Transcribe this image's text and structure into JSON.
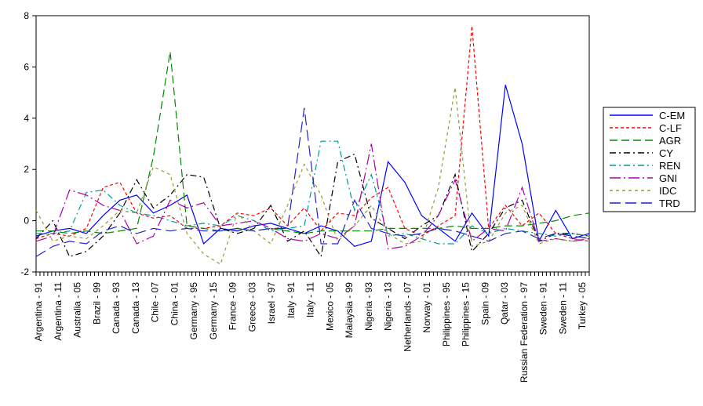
{
  "chart_data": {
    "type": "line",
    "title": "",
    "xlabel": "",
    "ylabel": "",
    "ylim": [
      -2,
      8
    ],
    "y_ticks": [
      -2,
      0,
      2,
      4,
      6,
      8
    ],
    "grid": false,
    "legend_position": "right",
    "x_tick_labels": [
      "Argentina - 91",
      "Argentina - 11",
      "Australia - 05",
      "Brazil - 99",
      "Canada - 93",
      "Canada - 13",
      "Chile - 07",
      "China - 01",
      "Germany - 95",
      "Germany - 15",
      "France - 09",
      "Greece - 03",
      "Israel - 97",
      "Italy - 91",
      "Italy - 11",
      "Mexico - 05",
      "Malaysia - 99",
      "Nigeria - 93",
      "Nigeria - 13",
      "Netherlands - 07",
      "Norway - 01",
      "Philippines - 95",
      "Philippines - 15",
      "Spain - 09",
      "Qatar - 03",
      "Russian Federation - 97",
      "Sweden - 91",
      "Sweden - 11",
      "Turkey - 05"
    ],
    "series": [
      {
        "name": "C-EM",
        "color": "#0000ff",
        "dash": "solid",
        "values": [
          -0.6,
          -0.4,
          -0.3,
          -0.5,
          0.2,
          0.8,
          1.0,
          0.3,
          0.6,
          1.0,
          -0.9,
          -0.3,
          -0.4,
          -0.2,
          -0.1,
          -0.3,
          -0.5,
          -0.2,
          -0.4,
          -1.0,
          -0.8,
          2.3,
          1.5,
          0.2,
          -0.3,
          -0.8,
          0.3,
          -0.6,
          5.3,
          3.0,
          -0.8,
          0.4,
          -0.7,
          -0.5
        ]
      },
      {
        "name": "C-LF",
        "color": "#ff0000",
        "dash": "4,3",
        "values": [
          -0.7,
          -0.5,
          -0.6,
          -0.3,
          1.3,
          1.5,
          0.3,
          0.1,
          0.2,
          -0.3,
          -0.3,
          -0.2,
          0.3,
          0.2,
          0.5,
          -0.2,
          0.5,
          -0.4,
          0.3,
          0.2,
          0.9,
          1.3,
          -0.3,
          -0.6,
          -0.2,
          0.2,
          7.6,
          -0.3,
          0.6,
          -0.2,
          0.3,
          -0.5,
          -0.7,
          -0.8
        ]
      },
      {
        "name": "AGR",
        "color": "#008800",
        "dash": "10,5",
        "values": [
          -0.4,
          -0.4,
          -0.5,
          -0.4,
          -0.5,
          -0.4,
          -0.3,
          2.5,
          6.6,
          -0.2,
          -0.3,
          -0.4,
          -0.3,
          -0.4,
          -0.3,
          -0.4,
          -0.5,
          -0.4,
          -0.4,
          -0.4,
          -0.4,
          -0.3,
          -0.3,
          -0.3,
          -0.3,
          -0.2,
          -0.3,
          -0.3,
          -0.2,
          -0.2,
          -0.1,
          0.0,
          0.2,
          0.3
        ]
      },
      {
        "name": "CY",
        "color": "#000000",
        "dash": "8,4,2,4",
        "values": [
          -0.7,
          0.0,
          -1.4,
          -1.2,
          -0.6,
          0.3,
          1.6,
          0.5,
          1.0,
          1.8,
          1.7,
          -0.3,
          -0.5,
          -0.3,
          0.6,
          -0.8,
          -0.4,
          -1.4,
          2.3,
          2.6,
          0.1,
          -0.3,
          -0.7,
          -0.2,
          0.2,
          1.8,
          -1.2,
          -0.5,
          0.5,
          0.8,
          -0.8,
          -0.5,
          -0.5,
          -0.6
        ]
      },
      {
        "name": "REN",
        "color": "#009999",
        "dash": "8,4,2,4",
        "values": [
          -0.5,
          -0.5,
          -0.4,
          1.1,
          1.2,
          0.6,
          0.3,
          0.2,
          0.0,
          -0.2,
          -0.1,
          -0.2,
          0.2,
          0.0,
          -0.4,
          -0.3,
          -0.2,
          3.1,
          3.1,
          0.4,
          1.8,
          -0.6,
          -0.5,
          -0.7,
          -0.9,
          -0.9,
          -0.2,
          -0.5,
          -0.3,
          -0.4,
          -0.5,
          -0.6,
          -0.5,
          -0.6
        ]
      },
      {
        "name": "GNI",
        "color": "#aa00aa",
        "dash": "14,4,2,4",
        "values": [
          -0.8,
          -0.6,
          1.2,
          1.0,
          0.6,
          0.4,
          -0.9,
          -0.6,
          0.8,
          0.5,
          0.7,
          -0.2,
          -0.1,
          0.0,
          -0.3,
          -0.7,
          -0.8,
          -0.5,
          -0.7,
          -0.2,
          3.0,
          -1.1,
          -1.0,
          -0.6,
          0.2,
          1.6,
          -0.8,
          -0.3,
          -0.4,
          1.3,
          -0.8,
          -0.7,
          -0.8,
          -0.7
        ]
      },
      {
        "name": "IDC",
        "color": "#999933",
        "dash": "4,4",
        "values": [
          0.4,
          -0.8,
          -0.6,
          -0.7,
          -0.2,
          0.4,
          0.3,
          2.1,
          1.8,
          -0.5,
          -1.3,
          -1.7,
          0.3,
          -0.4,
          -0.9,
          0.6,
          2.2,
          1.0,
          -0.8,
          -0.2,
          0.6,
          -0.5,
          -0.9,
          -0.8,
          1.3,
          5.2,
          -1.0,
          -0.8,
          0.3,
          0.6,
          -0.9,
          -0.7,
          -0.8,
          -0.6
        ]
      },
      {
        "name": "TRD",
        "color": "#2222cc",
        "dash": "14,6",
        "values": [
          -1.4,
          -1.0,
          -0.8,
          -0.9,
          -0.4,
          -0.2,
          -0.5,
          -0.3,
          -0.4,
          -0.3,
          -0.4,
          -0.4,
          -0.3,
          -0.4,
          -0.3,
          -0.3,
          4.4,
          -0.9,
          -0.9,
          0.8,
          -0.3,
          -0.5,
          -0.6,
          -0.5,
          -0.3,
          -0.4,
          -0.6,
          -0.8,
          -0.5,
          -0.4,
          -0.7,
          -0.5,
          -0.6,
          -0.7
        ]
      }
    ]
  }
}
